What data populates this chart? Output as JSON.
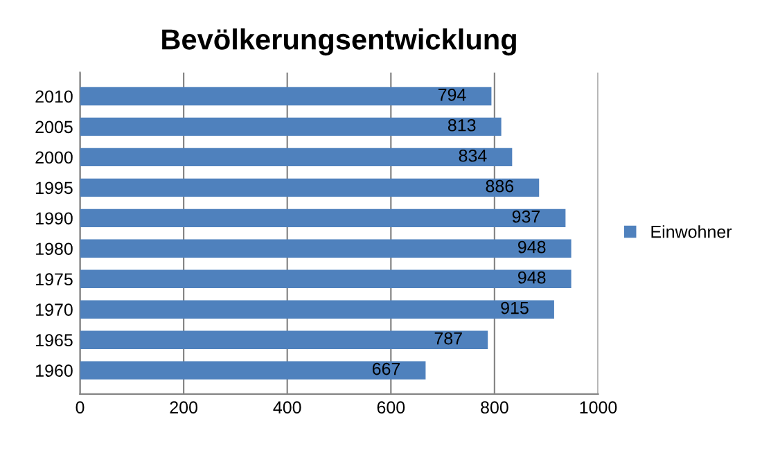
{
  "chart_data": {
    "type": "bar",
    "orientation": "horizontal",
    "title": "Bevölkerungsentwicklung",
    "categories": [
      "2010",
      "2005",
      "2000",
      "1995",
      "1990",
      "1980",
      "1975",
      "1970",
      "1965",
      "1960"
    ],
    "series": [
      {
        "name": "Einwohner",
        "color": "#4f81bd",
        "values": [
          794,
          813,
          834,
          886,
          937,
          948,
          948,
          915,
          787,
          667
        ]
      }
    ],
    "xlim": [
      0,
      1000
    ],
    "xticks": [
      0,
      200,
      400,
      600,
      800,
      1000
    ],
    "grid": "x",
    "legend": "right",
    "data_labels": true
  }
}
